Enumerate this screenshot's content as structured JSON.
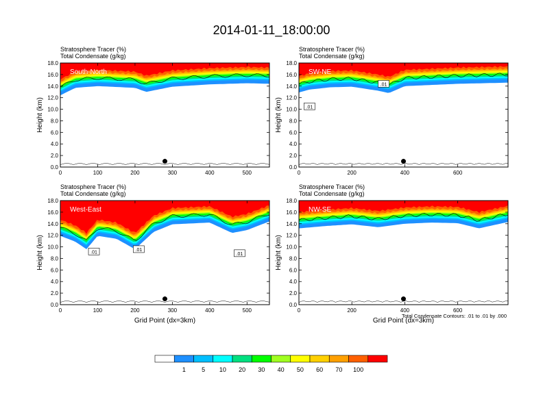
{
  "figure": {
    "title": "2014-01-11_18:00:00",
    "footnote": "Total Condensate Contours: .01 to .01 by .000"
  },
  "colorbar": {
    "colors": [
      "#ffffff",
      "#1e90ff",
      "#00bfff",
      "#00ffff",
      "#00e080",
      "#00ff00",
      "#a0ff20",
      "#ffff00",
      "#ffd000",
      "#ffa000",
      "#ff6000",
      "#ff0000"
    ],
    "labels": [
      "1",
      "5",
      "10",
      "20",
      "30",
      "40",
      "50",
      "60",
      "70",
      "100"
    ]
  },
  "chart_data": [
    {
      "type": "heatmap",
      "label": "South-North",
      "header_line1": "Stratosphere Tracer   (%)",
      "header_line2": "Total Condensate   (g/kg)",
      "ylabel": "Height (km)",
      "xlabel": "",
      "xlim": [
        0,
        560
      ],
      "ylim": [
        0,
        18
      ],
      "xticks": [
        "0",
        "100",
        "200",
        "300",
        "400",
        "500"
      ],
      "xtick_values": [
        0,
        100,
        200,
        300,
        400,
        500
      ],
      "yticks": [
        "0.0",
        "2.0",
        "4.0",
        "6.0",
        "8.0",
        "10.0",
        "12.0",
        "14.0",
        "16.0",
        "18.0"
      ],
      "contour_labels": [],
      "marker": [
        280,
        1.0
      ],
      "tracer_base_km": [
        [
          0,
          13.0
        ],
        [
          40,
          14.3
        ],
        [
          100,
          14.6
        ],
        [
          200,
          14.3
        ],
        [
          230,
          13.6
        ],
        [
          300,
          14.5
        ],
        [
          400,
          14.9
        ],
        [
          500,
          15.1
        ],
        [
          560,
          15.0
        ]
      ]
    },
    {
      "type": "heatmap",
      "label": "SW-NE",
      "header_line1": "Stratosphere Tracer   (%)",
      "header_line2": "Total Condensate   (g/kg)",
      "ylabel": "Height (km)",
      "xlabel": "",
      "xlim": [
        0,
        790
      ],
      "ylim": [
        0,
        18
      ],
      "xticks": [
        "0",
        "200",
        "400",
        "600"
      ],
      "xtick_values": [
        0,
        200,
        400,
        600
      ],
      "yticks": [
        "0.0",
        "2.0",
        "4.0",
        "6.0",
        "8.0",
        "10.0",
        "12.0",
        "14.0",
        "16.0",
        "18.0"
      ],
      "contour_labels": [
        {
          "text": ".01",
          "x": 40,
          "y": 10.5
        },
        {
          "text": ".01",
          "x": 320,
          "y": 14.4
        }
      ],
      "marker": [
        395,
        1.0
      ],
      "tracer_base_km": [
        [
          0,
          13.5
        ],
        [
          40,
          14.0
        ],
        [
          120,
          14.4
        ],
        [
          200,
          14.5
        ],
        [
          300,
          13.8
        ],
        [
          340,
          13.4
        ],
        [
          400,
          14.6
        ],
        [
          600,
          15.0
        ],
        [
          790,
          15.2
        ]
      ]
    },
    {
      "type": "heatmap",
      "label": "West-East",
      "header_line1": "Stratosphere Tracer   (%)",
      "header_line2": "Total Condensate   (g/kg)",
      "ylabel": "Height (km)",
      "xlabel": "Grid Point (dx=3km)",
      "xlim": [
        0,
        560
      ],
      "ylim": [
        0,
        18
      ],
      "xticks": [
        "0",
        "100",
        "200",
        "300",
        "400",
        "500"
      ],
      "xtick_values": [
        0,
        100,
        200,
        300,
        400,
        500
      ],
      "yticks": [
        "0.0",
        "2.0",
        "4.0",
        "6.0",
        "8.0",
        "10.0",
        "12.0",
        "14.0",
        "16.0",
        "18.0"
      ],
      "contour_labels": [
        {
          "text": ".01",
          "x": 90,
          "y": 9.2
        },
        {
          "text": ".01",
          "x": 210,
          "y": 9.6
        },
        {
          "text": ".01",
          "x": 480,
          "y": 8.9
        }
      ],
      "marker": [
        280,
        1.0
      ],
      "tracer_base_km": [
        [
          0,
          12.5
        ],
        [
          40,
          11.5
        ],
        [
          70,
          10.2
        ],
        [
          100,
          12.5
        ],
        [
          150,
          12.0
        ],
        [
          200,
          10.2
        ],
        [
          250,
          13.2
        ],
        [
          300,
          14.5
        ],
        [
          400,
          14.8
        ],
        [
          460,
          13.0
        ],
        [
          500,
          13.5
        ],
        [
          560,
          15.0
        ]
      ]
    },
    {
      "type": "heatmap",
      "label": "NW-SE",
      "header_line1": "Stratosphere Tracer   (%)",
      "header_line2": "Total Condensate   (g/kg)",
      "ylabel": "Height (km)",
      "xlabel": "Grid Point (dx=3km)",
      "xlim": [
        0,
        790
      ],
      "ylim": [
        0,
        18
      ],
      "xticks": [
        "0",
        "200",
        "400",
        "600"
      ],
      "xtick_values": [
        0,
        200,
        400,
        600
      ],
      "yticks": [
        "0.0",
        "2.0",
        "4.0",
        "6.0",
        "8.0",
        "10.0",
        "12.0",
        "14.0",
        "16.0",
        "18.0"
      ],
      "contour_labels": [],
      "marker": [
        395,
        1.0
      ],
      "tracer_base_km": [
        [
          0,
          13.8
        ],
        [
          100,
          14.2
        ],
        [
          200,
          14.5
        ],
        [
          300,
          14.0
        ],
        [
          400,
          14.6
        ],
        [
          500,
          14.8
        ],
        [
          600,
          14.7
        ],
        [
          680,
          13.8
        ],
        [
          790,
          14.9
        ]
      ]
    }
  ]
}
